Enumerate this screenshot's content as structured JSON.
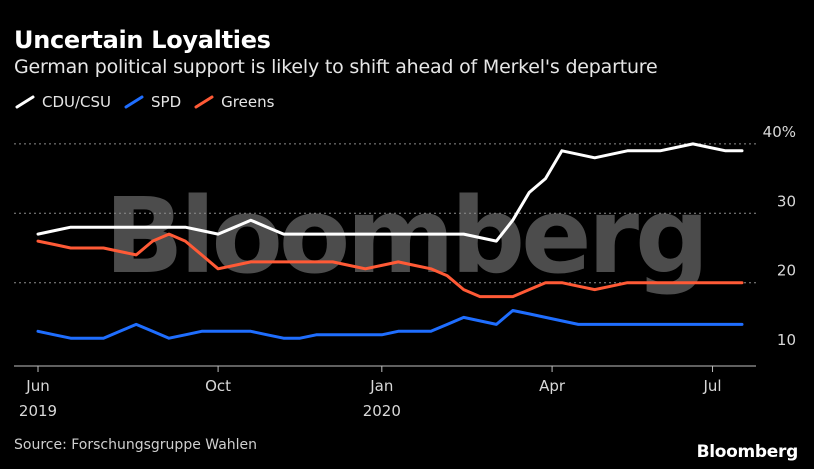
{
  "chart_data": {
    "type": "line",
    "title": "Uncertain Loyalties",
    "subtitle": "German political support is likely to shift ahead of Merkel's departure",
    "ylabel": "",
    "xlabel": "",
    "ylim": [
      8,
      42
    ],
    "y_ticks": [
      {
        "value": 40,
        "label": "40%"
      },
      {
        "value": 30,
        "label": "30"
      },
      {
        "value": 20,
        "label": "20"
      },
      {
        "value": 10,
        "label": "10"
      }
    ],
    "x_ticks": [
      {
        "index": 0,
        "label": "Jun",
        "sub": "2019"
      },
      {
        "index": 11,
        "label": "Oct",
        "sub": ""
      },
      {
        "index": 21,
        "label": "Jan",
        "sub": "2020"
      },
      {
        "index": 31.4,
        "label": "Apr",
        "sub": ""
      },
      {
        "index": 41.2,
        "label": "Jul",
        "sub": ""
      }
    ],
    "x": [
      0,
      1,
      2,
      3,
      4,
      5,
      6,
      7,
      8,
      9,
      10,
      11,
      12,
      13,
      14,
      15,
      16,
      17,
      18,
      19,
      20,
      21,
      22,
      23,
      24,
      25,
      26,
      27,
      28,
      29,
      30,
      31,
      32,
      33,
      34,
      35,
      36,
      37,
      38,
      39,
      40,
      41,
      42,
      43
    ],
    "series": [
      {
        "name": "CDU/CSU",
        "color": "#ffffff",
        "values": [
          27,
          27.5,
          28,
          28,
          28,
          28,
          28,
          28,
          28,
          28,
          27.5,
          27,
          28,
          29,
          28,
          27,
          27,
          27,
          27,
          27,
          27,
          27,
          27,
          27,
          27,
          27,
          27,
          26.5,
          26,
          29,
          33,
          35,
          39,
          38.5,
          38,
          38.5,
          39,
          39,
          39,
          39.5,
          40,
          39.5,
          39,
          39
        ]
      },
      {
        "name": "SPD",
        "color": "#1f6eff",
        "values": [
          13,
          12.5,
          12,
          12,
          12,
          13,
          14,
          13,
          12,
          12.5,
          13,
          13,
          13,
          13,
          12.5,
          12,
          12,
          12.5,
          12.5,
          12.5,
          12.5,
          12.5,
          13,
          13,
          13,
          14,
          15,
          14.5,
          14,
          16,
          15.5,
          15,
          14.5,
          14,
          14,
          14,
          14,
          14,
          14,
          14,
          14,
          14,
          14,
          14
        ]
      },
      {
        "name": "Greens",
        "color": "#ff5a36",
        "values": [
          26,
          25.5,
          25,
          25,
          25,
          24.5,
          24,
          26,
          27,
          26,
          24,
          22,
          22.5,
          23,
          23,
          23,
          23,
          23,
          23,
          22.5,
          22,
          22.5,
          23,
          22.5,
          22,
          21,
          19,
          18,
          18,
          18,
          19,
          20,
          20,
          19.5,
          19,
          19.5,
          20,
          20,
          20,
          20,
          20,
          20,
          20,
          20
        ]
      }
    ],
    "legend": [
      "CDU/CSU",
      "SPD",
      "Greens"
    ],
    "source": "Source: Forschungsgruppe Wahlen"
  },
  "watermark": "Bloomberg",
  "brand": "Bloomberg"
}
